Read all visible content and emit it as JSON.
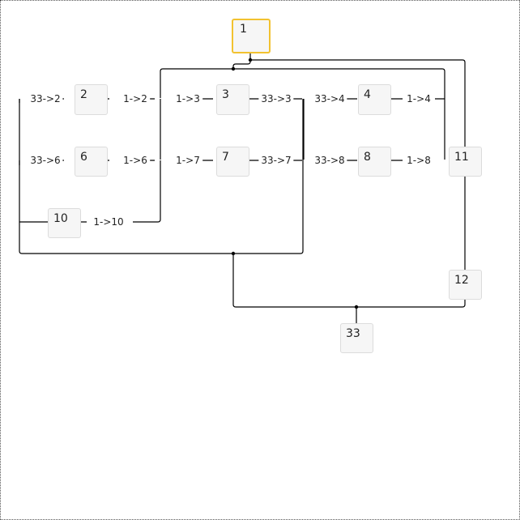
{
  "nodes": [
    {
      "id": "n1",
      "label": "1",
      "selected": true
    },
    {
      "id": "n2",
      "label": "2"
    },
    {
      "id": "n3",
      "label": "3"
    },
    {
      "id": "n4",
      "label": "4"
    },
    {
      "id": "n6",
      "label": "6"
    },
    {
      "id": "n7",
      "label": "7"
    },
    {
      "id": "n8",
      "label": "8"
    },
    {
      "id": "n10",
      "label": "10"
    },
    {
      "id": "n11",
      "label": "11"
    },
    {
      "id": "n12",
      "label": "12"
    },
    {
      "id": "n33",
      "label": "33"
    }
  ],
  "edges": [
    {
      "label": "33->2"
    },
    {
      "label": "1->2"
    },
    {
      "label": "1->3"
    },
    {
      "label": "33->3"
    },
    {
      "label": "33->4"
    },
    {
      "label": "1->4"
    },
    {
      "label": "33->6"
    },
    {
      "label": "1->6"
    },
    {
      "label": "1->7"
    },
    {
      "label": "33->7"
    },
    {
      "label": "33->8"
    },
    {
      "label": "1->8"
    },
    {
      "label": "1->10"
    }
  ],
  "colors": {
    "selected_border": "#f2c230",
    "node_fill": "#f6f6f6",
    "line": "#000000"
  }
}
